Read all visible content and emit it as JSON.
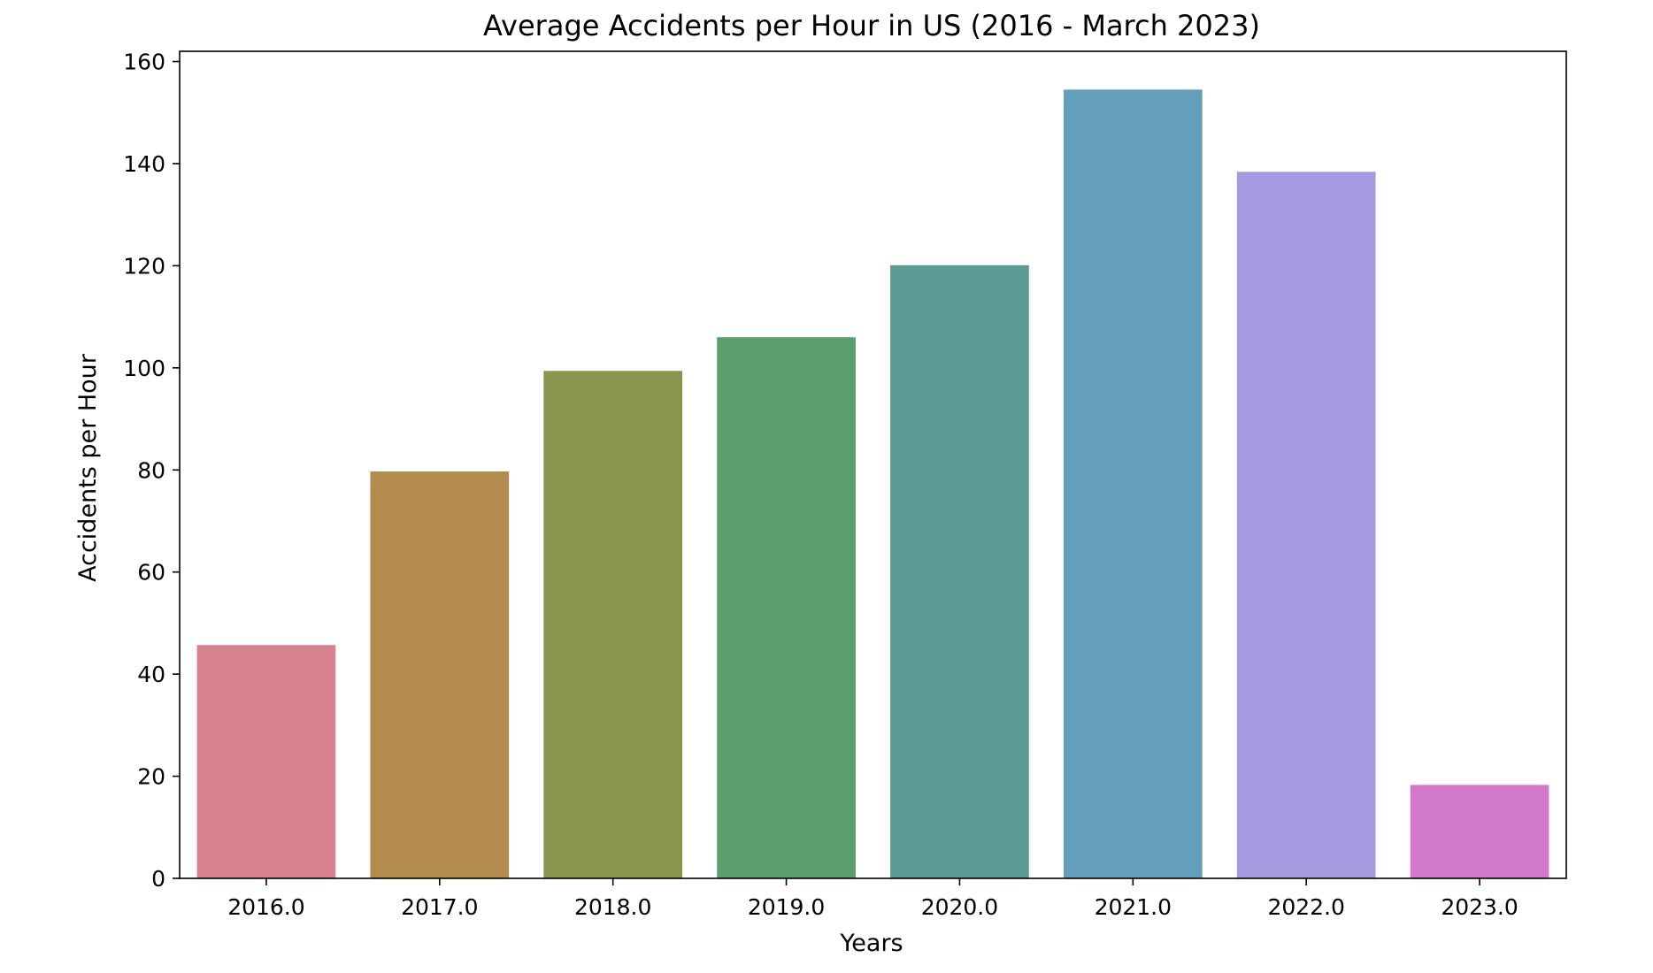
{
  "chart_data": {
    "type": "bar",
    "title": "Average Accidents per Hour in US (2016 - March 2023)",
    "xlabel": "Years",
    "ylabel": "Accidents per Hour",
    "categories": [
      "2016.0",
      "2017.0",
      "2018.0",
      "2019.0",
      "2020.0",
      "2021.0",
      "2022.0",
      "2023.0"
    ],
    "values": [
      45.7,
      79.7,
      99.4,
      106.0,
      120.1,
      154.5,
      138.4,
      18.3
    ],
    "colors": [
      "#d8828f",
      "#b38b4d",
      "#8b954d",
      "#5b9e6e",
      "#5c9b94",
      "#639eba",
      "#a699e0",
      "#d279cb"
    ],
    "ylim": [
      0,
      162
    ],
    "yticks": [
      0,
      20,
      40,
      60,
      80,
      100,
      120,
      140,
      160
    ],
    "grid": false,
    "legend": "none"
  }
}
